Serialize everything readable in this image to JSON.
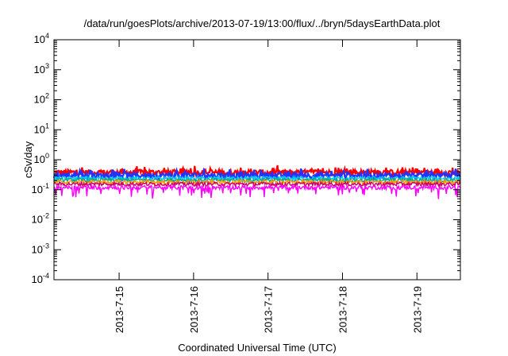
{
  "chart_data": {
    "type": "line",
    "title": "/data/run/goesPlots/archive/2013-07-19/13:00/flux/../bryn/5daysEarthData.plot",
    "xlabel": "Coordinated Universal Time (UTC)",
    "ylabel": "cSv/day",
    "y_scale": "log",
    "ylim": [
      0.0001,
      10000
    ],
    "y_ticks": [
      {
        "base": "10",
        "exp": "4"
      },
      {
        "base": "10",
        "exp": "3"
      },
      {
        "base": "10",
        "exp": "2"
      },
      {
        "base": "10",
        "exp": "1"
      },
      {
        "base": "10",
        "exp": "0"
      },
      {
        "base": "10",
        "exp": "-1"
      },
      {
        "base": "10",
        "exp": "-2"
      },
      {
        "base": "10",
        "exp": "-3"
      },
      {
        "base": "10",
        "exp": "-4"
      }
    ],
    "xlim": [
      "2013-07-14 03:00",
      "2013-07-19 14:00"
    ],
    "x_ticks": [
      "2013-7-15",
      "2013-7-16",
      "2013-7-17",
      "2013-7-18",
      "2013-7-19"
    ],
    "grid": false,
    "legend": "none",
    "series": [
      {
        "color": "#ff0000",
        "approx_level": 0.38
      },
      {
        "color": "#2233ff",
        "approx_level": 0.3
      },
      {
        "color": "#00ccff",
        "approx_level": 0.24
      },
      {
        "color": "#00aa88",
        "approx_level": 0.21
      },
      {
        "color": "#ff9900",
        "approx_level": 0.18
      },
      {
        "color": "#cc0066",
        "approx_level": 0.155
      },
      {
        "color": "#ff00ff",
        "approx_level": 0.12
      }
    ]
  }
}
